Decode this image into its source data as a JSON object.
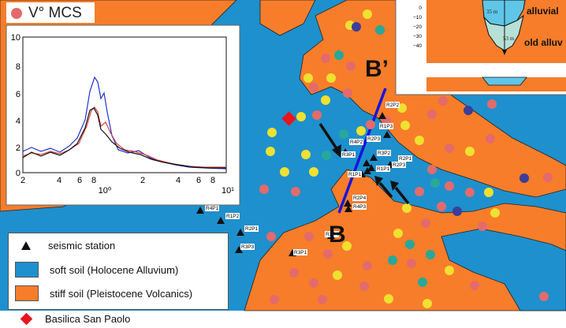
{
  "title": "V° MCS",
  "section": {
    "start_label": "B",
    "end_label": "B’"
  },
  "legend": {
    "station_label": "seismic station",
    "soft_label": "soft soil (Holocene Alluvium)",
    "stiff_label": "stiff soil (Pleistocene Volcanics)",
    "basilica_label": "Basilica San Paolo"
  },
  "colors": {
    "soft_soil": "#1e90cd",
    "stiff_soil": "#f77d2a",
    "basilica": "#e8141e",
    "section_line": "#1515d9",
    "alluvium_fill": "#5fc6e8",
    "old_alluvium_fill": "#b7e0d6"
  },
  "spectrum_inset": {
    "y_ticks": [
      "10",
      "8",
      "6",
      "4",
      "2",
      "0"
    ],
    "x_ticks": [
      "2",
      "4",
      "6",
      "8",
      "10⁰",
      "2",
      "4",
      "6",
      "8",
      "10¹"
    ]
  },
  "profile_inset": {
    "depth_ticks": [
      "0",
      "−10",
      "−20",
      "−30",
      "−40"
    ],
    "layer_labels": [
      "alluvial",
      "old alluv"
    ],
    "depth_labels": [
      "35 m",
      "53 m"
    ]
  },
  "station_labels": [
    "R2P2",
    "R1P3",
    "R2P3",
    "R4P2",
    "R3P2",
    "R2P1",
    "R3P1",
    "R2P3",
    "R1P1",
    "R2P4",
    "R4P3",
    "R3P4",
    "R4P1",
    "R3P1",
    "R1P2",
    "R2P1",
    "R3P3",
    "R1P1"
  ]
}
